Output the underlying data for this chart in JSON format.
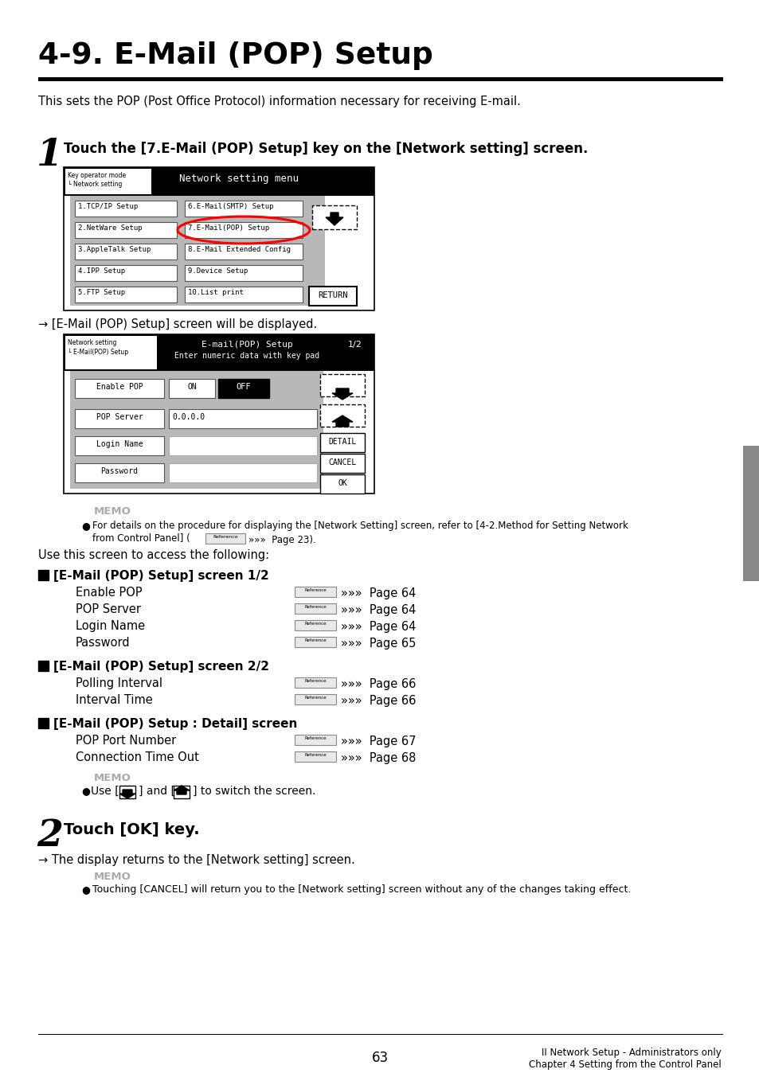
{
  "title": "4-9. E-Mail (POP) Setup",
  "subtitle": "This sets the POP (Post Office Protocol) information necessary for receiving E-mail.",
  "step1_number": "1",
  "step1_text": "Touch the [7.E-Mail (POP) Setup] key on the [Network setting] screen.",
  "arrow1": "→ [E-Mail (POP) Setup] screen will be displayed.",
  "memo_label": "MEMO",
  "use_screen_text": "Use this screen to access the following:",
  "section1_header": "[E-Mail (POP) Setup] screen 1/2",
  "section1_items": [
    [
      "Enable POP",
      "Page 64"
    ],
    [
      "POP Server",
      "Page 64"
    ],
    [
      "Login Name",
      "Page 64"
    ],
    [
      "Password",
      "Page 65"
    ]
  ],
  "section2_header": "[E-Mail (POP) Setup] screen 2/2",
  "section2_items": [
    [
      "Polling Interval",
      "Page 66"
    ],
    [
      "Interval Time",
      "Page 66"
    ]
  ],
  "section3_header": "[E-Mail (POP) Setup : Detail] screen",
  "section3_items": [
    [
      "POP Port Number",
      "Page 67"
    ],
    [
      "Connection Time Out",
      "Page 68"
    ]
  ],
  "step2_number": "2",
  "step2_text": "Touch [OK] key.",
  "arrow2": "→ The display returns to the [Network setting] screen.",
  "memo3_text": "Touching [CANCEL] will return you to the [Network setting] screen without any of the changes taking effect.",
  "footer_page": "63",
  "footer_right": "II Network Setup - Administrators only\nChapter 4 Setting from the Control Panel",
  "bg_color": "#ffffff",
  "text_color": "#000000"
}
